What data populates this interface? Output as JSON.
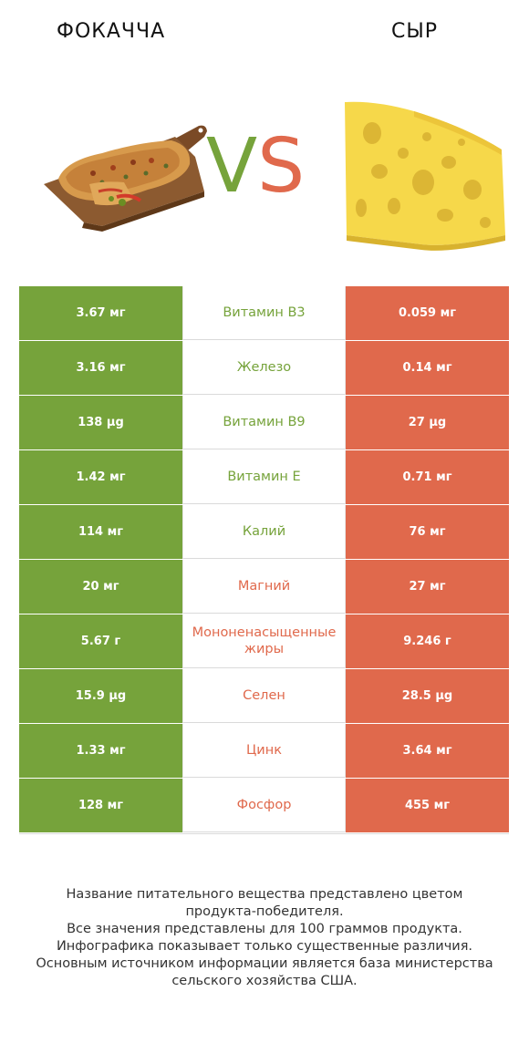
{
  "header": {
    "left_title": "ФОКАЧЧА",
    "right_title": "СЫР",
    "vs_v": "V",
    "vs_s": "S"
  },
  "colors": {
    "left_accent": "#76a33b",
    "right_accent": "#e0694c"
  },
  "images": {
    "left": "focaccia-on-board-image",
    "right": "swiss-cheese-wedge-image"
  },
  "rows": [
    {
      "left": "3.67 мг",
      "nutrient": "Витамин B3",
      "right": "0.059 мг",
      "winner": "left"
    },
    {
      "left": "3.16 мг",
      "nutrient": "Железо",
      "right": "0.14 мг",
      "winner": "left"
    },
    {
      "left": "138 µg",
      "nutrient": "Витамин B9",
      "right": "27 µg",
      "winner": "left"
    },
    {
      "left": "1.42 мг",
      "nutrient": "Витамин E",
      "right": "0.71 мг",
      "winner": "left"
    },
    {
      "left": "114 мг",
      "nutrient": "Калий",
      "right": "76 мг",
      "winner": "left"
    },
    {
      "left": "20 мг",
      "nutrient": "Магний",
      "right": "27 мг",
      "winner": "right"
    },
    {
      "left": "5.67 г",
      "nutrient": "Мононенасыщенные жиры",
      "right": "9.246 г",
      "winner": "right"
    },
    {
      "left": "15.9 µg",
      "nutrient": "Селен",
      "right": "28.5 µg",
      "winner": "right"
    },
    {
      "left": "1.33 мг",
      "nutrient": "Цинк",
      "right": "3.64 мг",
      "winner": "right"
    },
    {
      "left": "128 мг",
      "nutrient": "Фосфор",
      "right": "455 мг",
      "winner": "right"
    }
  ],
  "footer": {
    "line1": "Название питательного вещества представлено цветом",
    "line2": "продукта-победителя.",
    "line3": "Все значения представлены для 100 граммов продукта.",
    "line4": "Инфографика показывает только существенные различия.",
    "line5": "Основным источником информации является база министерства",
    "line6": "сельского хозяйства США."
  }
}
